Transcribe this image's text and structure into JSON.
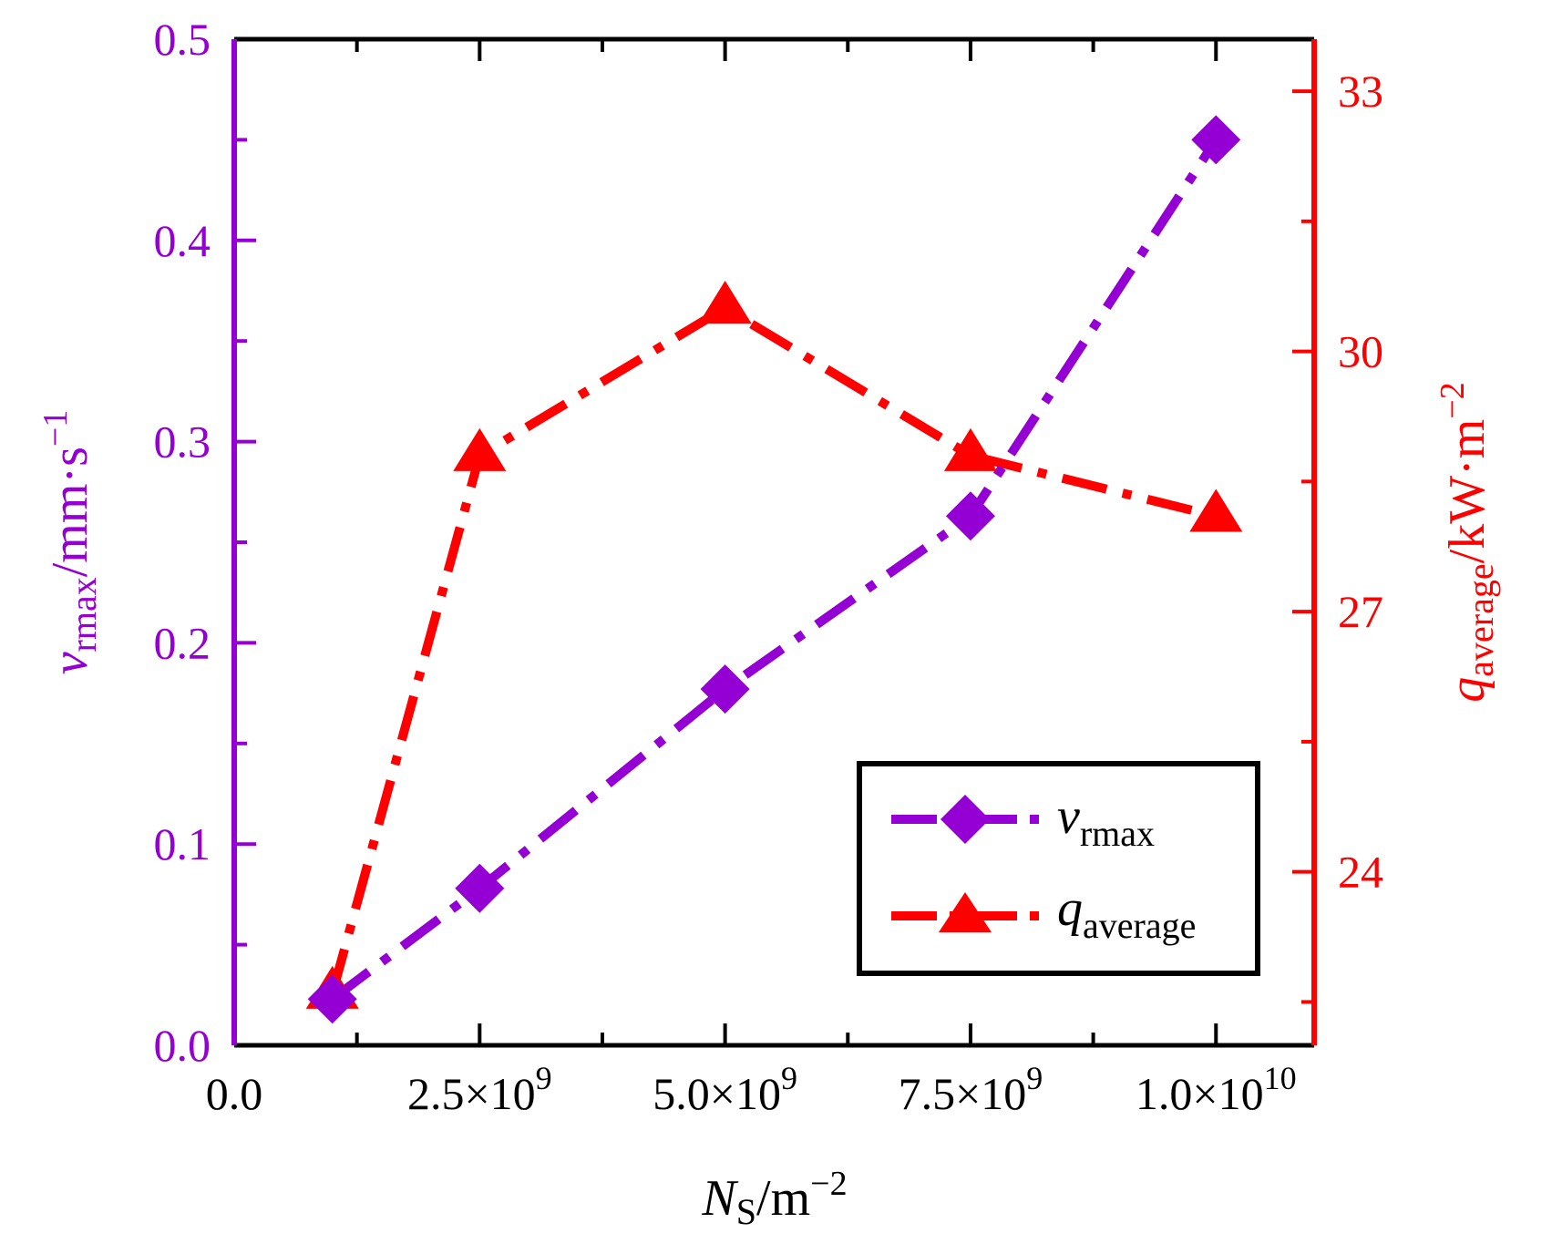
{
  "colors": {
    "series1": "#9400D3",
    "series2": "#FF0000",
    "frame": "#000000"
  },
  "chart_data": {
    "type": "line",
    "x": [
      1000000000,
      2500000000,
      5000000000,
      7500000000,
      10000000000
    ],
    "series": [
      {
        "name": "v_rmax",
        "label": {
          "main": "v",
          "sub": "rmax"
        },
        "axis": "left",
        "color": "#9400D3",
        "marker": "diamond",
        "line_style": "dash-dot",
        "values": [
          0.023,
          0.078,
          0.177,
          0.263,
          0.45
        ]
      },
      {
        "name": "q_average",
        "label": {
          "main": "q",
          "sub": "average"
        },
        "axis": "right",
        "color": "#FF0000",
        "marker": "triangle",
        "line_style": "dash-dot",
        "values": [
          22.6,
          28.8,
          30.5,
          28.8,
          28.1
        ]
      }
    ],
    "x_axis": {
      "label": {
        "main": "N",
        "sub": "S",
        "unit": "/m",
        "exp": "−2"
      },
      "range": [
        0,
        11000000000
      ],
      "ticks": [
        {
          "value": 0,
          "label": {
            "base": "0.0"
          }
        },
        {
          "value": 2500000000,
          "label": {
            "base": "2.5×10",
            "exp": "9"
          }
        },
        {
          "value": 5000000000,
          "label": {
            "base": "5.0×10",
            "exp": "9"
          }
        },
        {
          "value": 7500000000,
          "label": {
            "base": "7.5×10",
            "exp": "9"
          }
        },
        {
          "value": 10000000000,
          "label": {
            "base": "1.0×10",
            "exp": "10"
          }
        }
      ]
    },
    "y_left": {
      "label": {
        "main": "v",
        "sub": "rmax",
        "unit": "/mm·s",
        "exp": "−1"
      },
      "range": [
        0,
        0.5
      ],
      "ticks": [
        "0.0",
        "0.1",
        "0.2",
        "0.3",
        "0.4",
        "0.5"
      ]
    },
    "y_right": {
      "label": {
        "main": "q",
        "sub": "average",
        "unit": "/kW·m",
        "exp": "−2"
      },
      "range": [
        22,
        33.6
      ],
      "ticks": [
        "24",
        "27",
        "30",
        "33"
      ]
    },
    "legend": {
      "position": "bottom-right"
    }
  }
}
